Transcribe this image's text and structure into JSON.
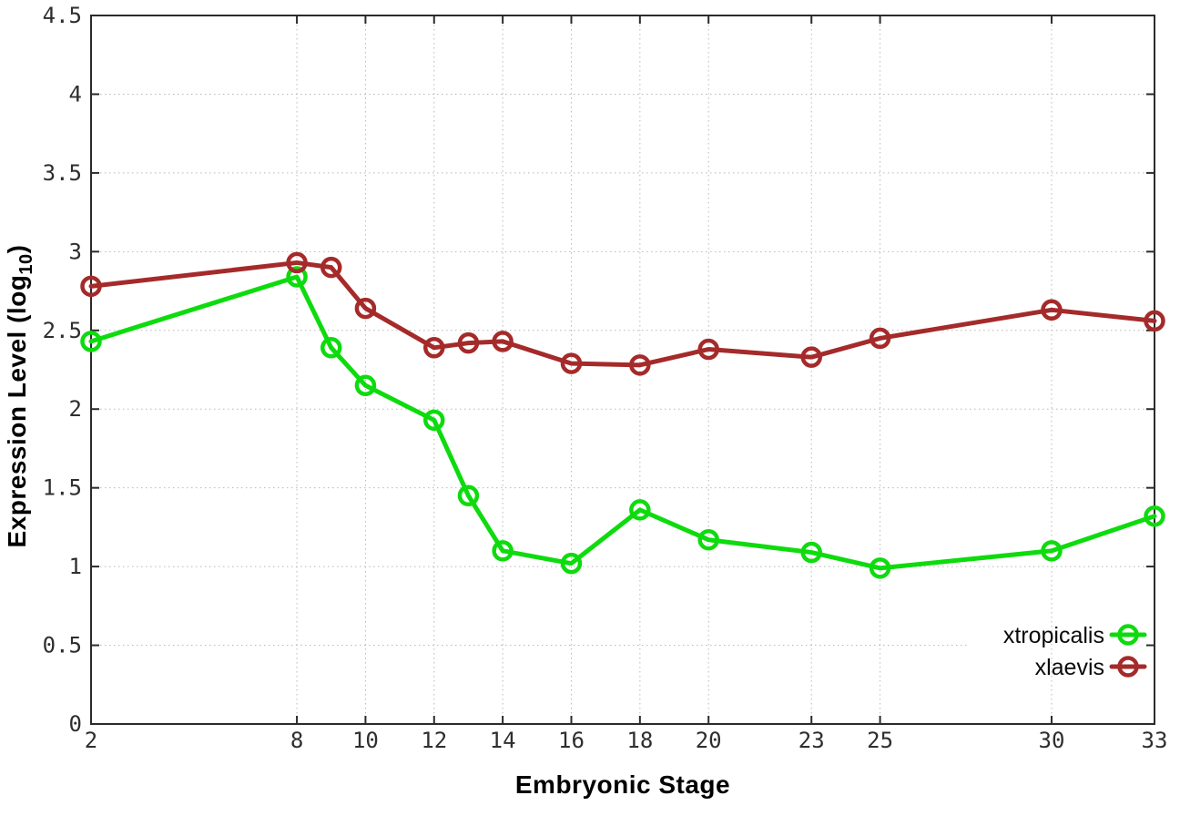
{
  "chart_data": {
    "type": "line",
    "title": "",
    "xlabel": "Embryonic Stage",
    "ylabel": "Expression Level (log10)",
    "ylabel_parts": {
      "main": "Expression Level (log",
      "sub": "10",
      "close": ")"
    },
    "x": [
      2,
      8,
      9,
      10,
      12,
      13,
      14,
      16,
      18,
      20,
      23,
      25,
      30,
      33
    ],
    "series": [
      {
        "name": "xtropicalis",
        "color": "#0edb0e",
        "values": [
          2.43,
          2.84,
          2.39,
          2.15,
          1.93,
          1.45,
          1.1,
          1.02,
          1.36,
          1.17,
          1.09,
          0.99,
          1.1,
          1.32
        ]
      },
      {
        "name": "xlaevis",
        "color": "#a52a2a",
        "values": [
          2.78,
          2.93,
          2.9,
          2.64,
          2.39,
          2.42,
          2.43,
          2.29,
          2.28,
          2.38,
          2.33,
          2.45,
          2.63,
          2.56
        ]
      }
    ],
    "xlim": [
      2,
      33
    ],
    "ylim": [
      0,
      4.5
    ],
    "xticks": [
      2,
      8,
      10,
      12,
      14,
      16,
      18,
      20,
      23,
      25,
      30,
      33
    ],
    "yticks": [
      0,
      0.5,
      1,
      1.5,
      2,
      2.5,
      3,
      3.5,
      4,
      4.5
    ],
    "grid": true,
    "grid_style": "dotted",
    "marker": "open-circle",
    "legend_position": "bottom-right",
    "background": "#ffffff",
    "frame_color": "#2b2b2b"
  }
}
